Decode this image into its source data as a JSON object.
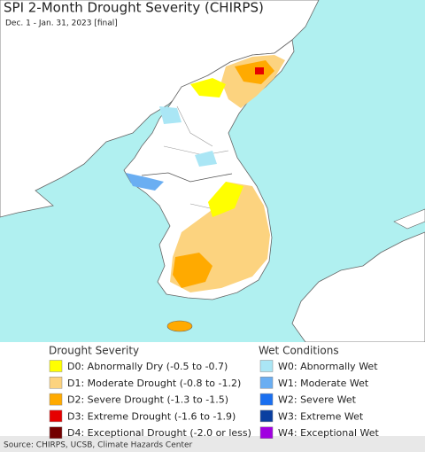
{
  "header": {
    "title": "SPI 2-Month Drought Severity (CHIRPS)",
    "subtitle": "Dec. 1 - Jan. 31, 2023 [final]"
  },
  "legend": {
    "drought": {
      "title": "Drought Severity",
      "items": [
        {
          "label": "D0: Abnormally Dry (-0.5 to -0.7)",
          "color": "#ffff00"
        },
        {
          "label": "D1: Moderate Drought (-0.8 to -1.2)",
          "color": "#fcd37f"
        },
        {
          "label": "D2: Severe Drought (-1.3 to -1.5)",
          "color": "#ffaa00"
        },
        {
          "label": "D3: Extreme Drought (-1.6 to -1.9)",
          "color": "#e60000"
        },
        {
          "label": "D4: Exceptional Drought (-2.0 or less)",
          "color": "#730000"
        }
      ]
    },
    "wet": {
      "title": "Wet Conditions",
      "items": [
        {
          "label": "W0: Abnormally Wet",
          "color": "#aae6f5"
        },
        {
          "label": "W1: Moderate Wet",
          "color": "#6aaef2"
        },
        {
          "label": "W2: Severe Wet",
          "color": "#1a6ff0"
        },
        {
          "label": "W3: Extreme Wet",
          "color": "#0a3fa0"
        },
        {
          "label": "W4: Exceptional Wet",
          "color": "#a000e0"
        }
      ]
    }
  },
  "footer": {
    "source": "Source: CHIRPS, UCSB, Climate Hazards Center"
  }
}
